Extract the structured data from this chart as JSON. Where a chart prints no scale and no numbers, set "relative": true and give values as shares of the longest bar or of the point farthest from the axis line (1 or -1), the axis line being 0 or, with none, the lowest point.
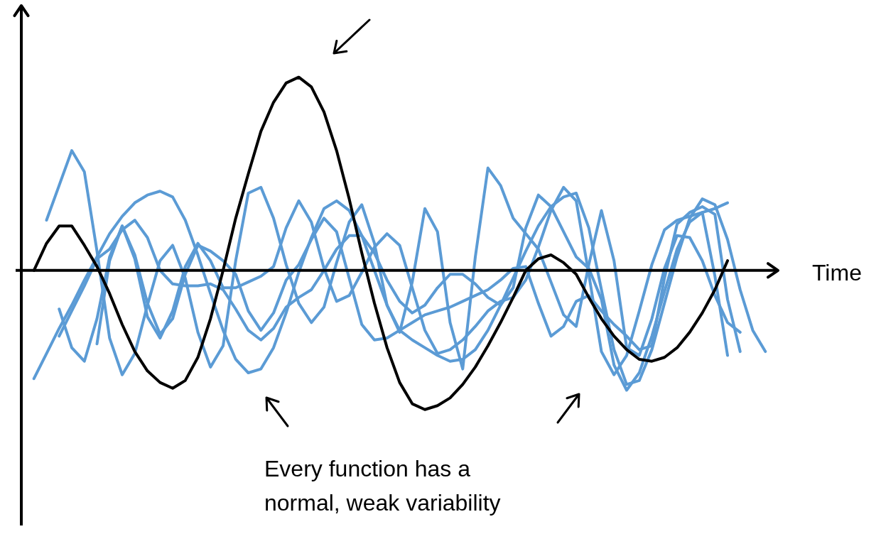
{
  "chart_data": {
    "type": "line",
    "relative": true,
    "xlabel": "Time",
    "legend": false,
    "line_style": "solid",
    "annotations": [
      "Every function has a normal, weak variability"
    ],
    "categories": [
      null,
      null,
      null,
      null,
      null,
      null,
      null,
      null,
      null,
      null,
      null,
      null,
      null,
      null,
      null,
      null,
      null,
      null,
      null,
      null,
      null,
      null,
      null,
      null,
      null,
      null,
      null,
      null,
      null,
      null,
      null,
      null,
      null,
      null,
      null,
      null,
      null,
      null,
      null,
      null,
      null,
      null,
      null,
      null,
      null,
      null,
      null,
      null,
      null,
      null,
      null,
      null,
      null,
      null,
      null,
      null,
      null,
      null,
      null,
      null,
      null
    ],
    "series": [
      {
        "color": "#000000",
        "values": [
          null,
          0,
          0.14,
          0.23,
          0.23,
          0.13,
          0.02,
          -0.12,
          -0.28,
          -0.42,
          -0.52,
          -0.58,
          -0.61,
          -0.57,
          -0.45,
          -0.25,
          0,
          0.27,
          0.5,
          0.72,
          0.87,
          0.97,
          1,
          0.95,
          0.82,
          0.62,
          0.37,
          0.09,
          -0.17,
          -0.4,
          -0.58,
          -0.69,
          -0.72,
          -0.7,
          -0.66,
          -0.59,
          -0.5,
          -0.39,
          -0.27,
          -0.14,
          0,
          0.06,
          0.08,
          0.04,
          -0.02,
          -0.14,
          -0.25,
          -0.34,
          -0.41,
          -0.46,
          -0.47,
          -0.45,
          -0.4,
          -0.32,
          -0.22,
          -0.1,
          0.05,
          null,
          null,
          null,
          null
        ]
      },
      {
        "color": "#5b9bd5",
        "values": [
          null,
          null,
          0.26,
          0.44,
          0.62,
          0.51,
          0.1,
          -0.35,
          -0.54,
          -0.43,
          -0.18,
          0.05,
          0.13,
          -0.04,
          -0.32,
          -0.5,
          -0.39,
          0.05,
          0.4,
          0.43,
          0.27,
          0.03,
          -0.17,
          -0.27,
          -0.19,
          0.04,
          0.25,
          0.34,
          0.14,
          -0.18,
          -0.32,
          -0.06,
          0.32,
          0.2,
          -0.27,
          -0.51,
          0.07,
          0.53,
          0.44,
          0.27,
          0.19,
          0.11,
          -0.06,
          -0.23,
          -0.29,
          0.03,
          0.31,
          0.05,
          -0.4,
          -0.44,
          -0.25,
          0.01,
          0.18,
          0.17,
          0.05,
          -0.13,
          -0.27,
          -0.32,
          null,
          null,
          null
        ]
      },
      {
        "color": "#5b9bd5",
        "values": [
          null,
          -0.56,
          -0.43,
          -0.3,
          -0.18,
          -0.05,
          0.07,
          0.19,
          0.28,
          0.35,
          0.39,
          0.41,
          0.38,
          0.26,
          0.08,
          -0.12,
          -0.31,
          -0.46,
          -0.53,
          -0.51,
          -0.4,
          -0.22,
          -0.01,
          0.17,
          0.32,
          0.36,
          0.31,
          0.18,
          0,
          -0.18,
          -0.31,
          -0.36,
          -0.4,
          -0.44,
          -0.47,
          -0.46,
          -0.41,
          -0.31,
          -0.18,
          -0.04,
          0.1,
          0.23,
          0.33,
          0.38,
          0.4,
          0.22,
          -0.1,
          -0.41,
          -0.59,
          -0.57,
          -0.41,
          -0.17,
          0.07,
          0.27,
          0.37,
          0.34,
          0.16,
          -0.1,
          -0.31,
          -0.42,
          null
        ]
      },
      {
        "color": "#5b9bd5",
        "values": [
          null,
          null,
          null,
          -0.2,
          -0.4,
          -0.47,
          -0.25,
          0.07,
          0.23,
          0.06,
          -0.24,
          -0.35,
          -0.21,
          0.02,
          0.14,
          0.05,
          -0.09,
          -0.09,
          -0.06,
          -0.03,
          0.02,
          0.22,
          0.36,
          0.25,
          0.01,
          -0.16,
          -0.13,
          -0.01,
          0.12,
          0.19,
          0.13,
          -0.09,
          -0.31,
          -0.43,
          -0.41,
          -0.36,
          -0.29,
          -0.21,
          -0.16,
          -0.14,
          -0.05,
          0.12,
          0.31,
          0.43,
          0.36,
          -0.02,
          -0.42,
          -0.54,
          -0.44,
          -0.21,
          0.03,
          0.21,
          0.26,
          0.28,
          0.3,
          0.32,
          0.35,
          null,
          null,
          null,
          null
        ]
      },
      {
        "color": "#5b9bd5",
        "values": [
          null,
          null,
          null,
          null,
          null,
          null,
          -0.38,
          0.05,
          0.23,
          0.08,
          -0.17,
          -0.33,
          -0.25,
          -0.02,
          0.13,
          0.1,
          0.05,
          -0.02,
          -0.21,
          -0.31,
          -0.22,
          -0.05,
          0.03,
          0.16,
          0.27,
          0.2,
          -0.04,
          -0.28,
          -0.36,
          -0.35,
          -0.31,
          -0.27,
          -0.23,
          -0.21,
          -0.19,
          -0.16,
          -0.13,
          -0.1,
          -0.05,
          0.01,
          0.02,
          -0.17,
          -0.34,
          -0.29,
          -0.16,
          -0.13,
          -0.21,
          -0.28,
          -0.34,
          -0.41,
          -0.39,
          -0.04,
          0.24,
          0.3,
          0.33,
          0.29,
          -0.15,
          -0.42,
          null,
          null,
          null
        ]
      },
      {
        "color": "#5b9bd5",
        "values": [
          null,
          null,
          null,
          -0.34,
          -0.21,
          -0.08,
          0.06,
          0.11,
          0.21,
          0.26,
          0.17,
          0,
          -0.07,
          -0.08,
          -0.08,
          -0.07,
          -0.1,
          -0.2,
          -0.31,
          -0.36,
          -0.3,
          -0.19,
          -0.14,
          -0.1,
          0,
          0.11,
          0.18,
          0.18,
          0.09,
          -0.05,
          -0.16,
          -0.22,
          -0.18,
          -0.09,
          -0.02,
          -0.02,
          -0.07,
          -0.14,
          -0.18,
          -0.09,
          0.22,
          0.39,
          0.33,
          0.2,
          0.07,
          0.01,
          -0.15,
          -0.49,
          -0.62,
          -0.53,
          -0.34,
          -0.11,
          0.11,
          0.25,
          0.3,
          -0.03,
          -0.44,
          null,
          null,
          null,
          null
        ]
      }
    ]
  }
}
